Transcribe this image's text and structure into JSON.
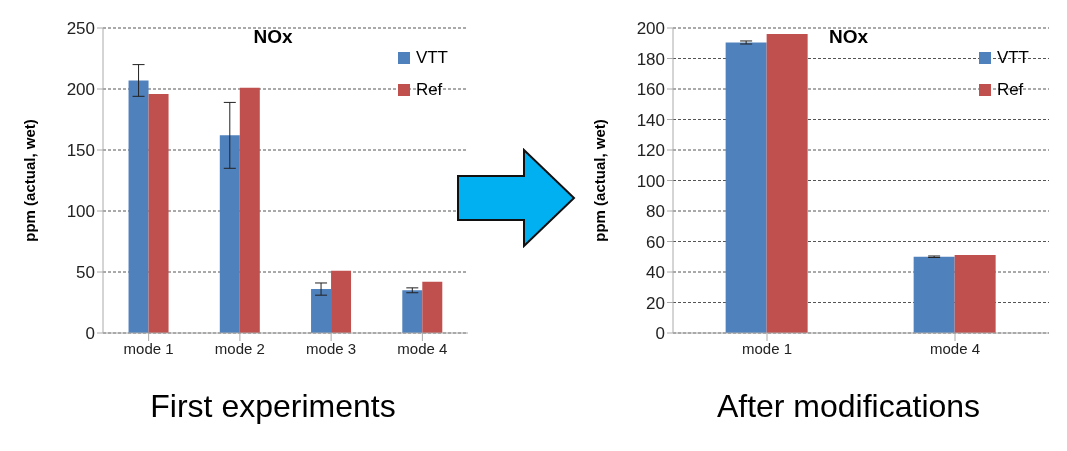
{
  "chart_data": [
    {
      "type": "bar",
      "title": "NOx",
      "ylabel": "ppm (actual, wet)",
      "categories": [
        "mode 1",
        "mode 2",
        "mode 3",
        "mode 4"
      ],
      "series": [
        {
          "name": "VTT",
          "color": "#4f81bd",
          "values": [
            207,
            162,
            36,
            35
          ],
          "errors": [
            [
              194,
              220
            ],
            [
              135,
              189
            ],
            [
              31,
              41
            ],
            [
              33,
              37
            ]
          ]
        },
        {
          "name": "Ref",
          "color": "#c0504d",
          "values": [
            196,
            201,
            51,
            42
          ]
        }
      ],
      "ylim": [
        0,
        250
      ],
      "yticks": [
        0,
        50,
        100,
        150,
        200,
        250
      ],
      "grid": "y",
      "legend": "top right",
      "annotations": [
        "First experiments"
      ]
    },
    {
      "type": "bar",
      "title": "NOx",
      "ylabel": "ppm (actual, wet)",
      "categories": [
        "mode 1",
        "mode 4"
      ],
      "series": [
        {
          "name": "VTT",
          "color": "#4f81bd",
          "values": [
            190.5,
            50
          ],
          "errors": [
            [
              189.5,
              191.5
            ],
            [
              49.5,
              50.5
            ]
          ]
        },
        {
          "name": "Ref",
          "color": "#c0504d",
          "values": [
            196,
            51.2
          ]
        }
      ],
      "ylim": [
        0,
        200
      ],
      "yticks": [
        0,
        20,
        40,
        60,
        80,
        100,
        120,
        140,
        160,
        180,
        200
      ],
      "grid": "y",
      "legend": "top right",
      "annotations": [
        "After modifications"
      ]
    }
  ]
}
